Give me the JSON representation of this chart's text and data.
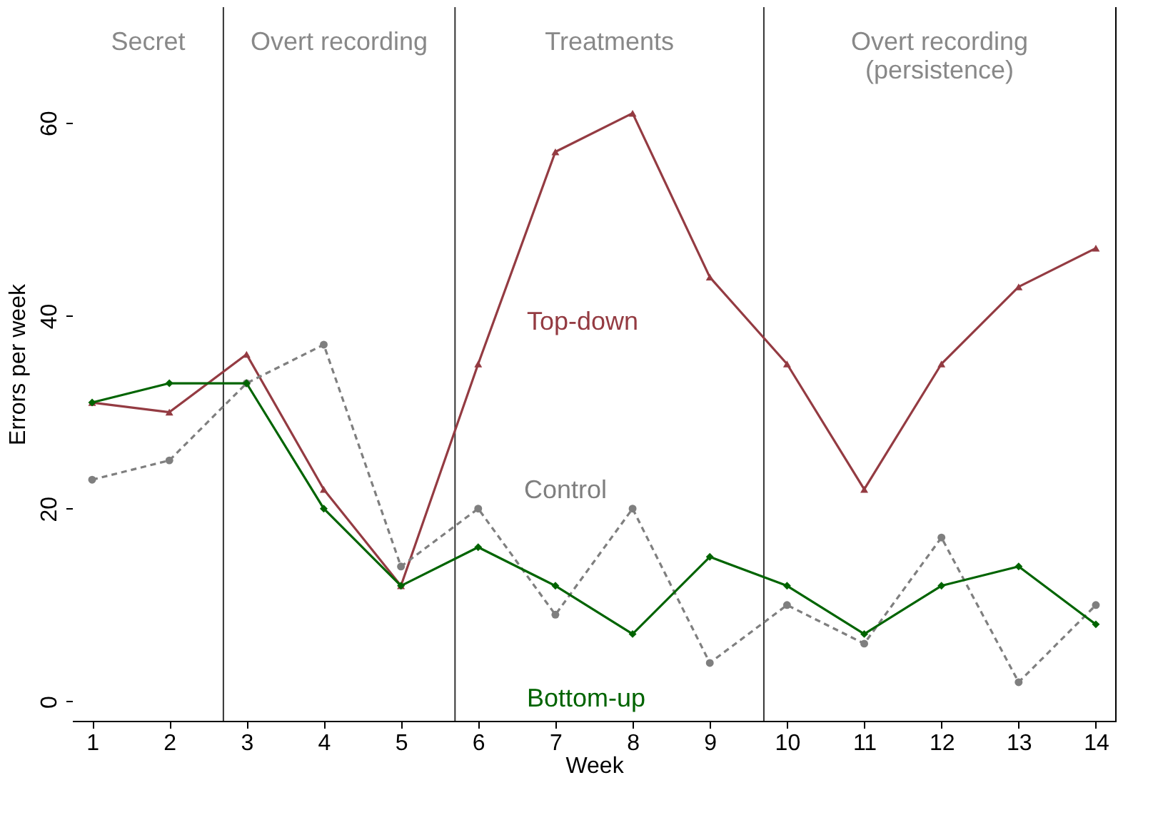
{
  "chart_data": {
    "type": "line",
    "x": [
      1,
      2,
      3,
      4,
      5,
      6,
      7,
      8,
      9,
      10,
      11,
      12,
      13,
      14
    ],
    "xlabel": "Week",
    "ylabel": "Errors per week",
    "xlim": [
      0.75,
      14.25
    ],
    "xticks": [
      1,
      2,
      3,
      4,
      5,
      6,
      7,
      8,
      9,
      10,
      11,
      12,
      13,
      14
    ],
    "ylim": [
      -2,
      72
    ],
    "yticks": [
      0,
      20,
      40,
      60
    ],
    "grid": false,
    "series": [
      {
        "name": "Top-down",
        "color": "#943b42",
        "marker": "triangle",
        "line_style": "solid",
        "values": [
          31,
          30,
          36,
          22,
          12,
          35,
          57,
          61,
          44,
          35,
          22,
          35,
          43,
          47
        ]
      },
      {
        "name": "Control",
        "color": "#7f7f7f",
        "marker": "circle",
        "line_style": "dashed",
        "values": [
          23,
          25,
          33,
          37,
          14,
          20,
          9,
          20,
          4,
          10,
          6,
          17,
          2,
          10
        ]
      },
      {
        "name": "Bottom-up",
        "color": "#006400",
        "marker": "diamond",
        "line_style": "solid",
        "values": [
          31,
          33,
          33,
          20,
          12,
          16,
          12,
          7,
          15,
          12,
          7,
          12,
          14,
          8
        ]
      }
    ],
    "ref_lines": [
      {
        "axis": "x",
        "value": 2.7,
        "color": "#333333"
      },
      {
        "axis": "x",
        "value": 5.7,
        "color": "#333333"
      },
      {
        "axis": "x",
        "value": 9.7,
        "color": "#333333"
      }
    ],
    "bands": [
      {
        "axis": "x",
        "from": 0.75,
        "to": 2.7,
        "label": "Secret",
        "color": "#ffffff"
      },
      {
        "axis": "x",
        "from": 2.7,
        "to": 5.7,
        "label": "Overt recording",
        "color": "#ffffff"
      },
      {
        "axis": "x",
        "from": 5.7,
        "to": 9.7,
        "label": "Treatments",
        "color": "#ffffff"
      },
      {
        "axis": "x",
        "from": 9.7,
        "to": 14.25,
        "label": "Overt recording\n(persistence)",
        "color": "#ffffff"
      }
    ]
  }
}
